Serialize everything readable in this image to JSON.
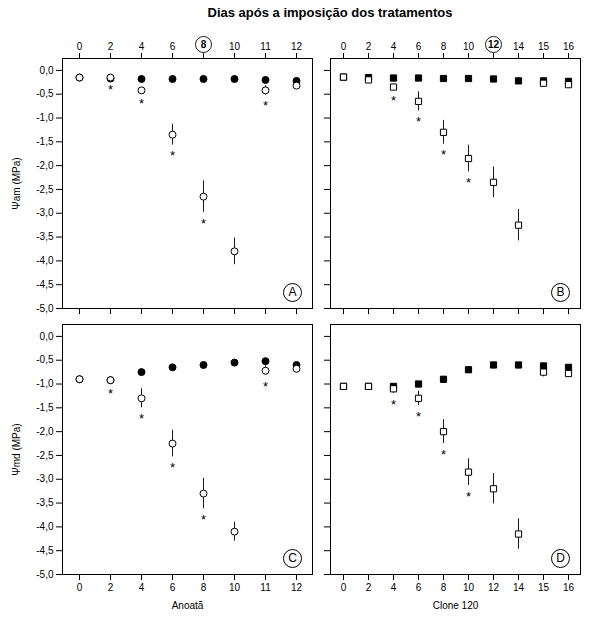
{
  "chart_data": [
    {
      "type": "scatter",
      "title": "Dias após a imposição dos tratamentos",
      "panel_label": "A",
      "ylabel": "Ψam (MPa)",
      "categories": [
        "0",
        "2",
        "4",
        "6",
        "8",
        "10",
        "11",
        "12"
      ],
      "circled_category": "8",
      "ylim": [
        -5.0,
        0.25
      ],
      "yticks": [
        {
          "value": 0.0,
          "label": "0,0"
        },
        {
          "value": -0.5,
          "label": "-0,5"
        },
        {
          "value": -1.0,
          "label": "-1,0"
        },
        {
          "value": -1.5,
          "label": "-1,5"
        },
        {
          "value": -2.0,
          "label": "-2,0"
        },
        {
          "value": -2.5,
          "label": "-2,5"
        },
        {
          "value": -3.0,
          "label": "-3,0"
        },
        {
          "value": -3.5,
          "label": "-3,5"
        },
        {
          "value": -4.0,
          "label": "-4,0"
        },
        {
          "value": -4.5,
          "label": "-4,5"
        },
        {
          "value": -5.0,
          "label": "-5,0"
        }
      ],
      "grid": false,
      "series": [
        {
          "color": "black",
          "marker": "circle",
          "values": [
            -0.15,
            -0.17,
            -0.18,
            -0.18,
            -0.18,
            -0.18,
            -0.2,
            -0.22
          ],
          "errors": [
            0.02,
            0.02,
            0.02,
            0.02,
            0.02,
            0.02,
            0.02,
            0.03
          ]
        },
        {
          "color": "black",
          "marker": "circle-open",
          "values": [
            -0.15,
            -0.15,
            -0.42,
            -1.35,
            -2.65,
            -3.8,
            -0.42,
            -0.32
          ],
          "errors": [
            0.02,
            0.02,
            0.06,
            0.22,
            0.33,
            0.28,
            0.1,
            0.05
          ],
          "annotations": [
            {
              "category": "2",
              "text": "*"
            },
            {
              "category": "4",
              "text": "*"
            },
            {
              "category": "6",
              "text": "*"
            },
            {
              "category": "8",
              "text": "*"
            },
            {
              "category": "11",
              "text": "*"
            }
          ]
        }
      ]
    },
    {
      "type": "scatter",
      "panel_label": "B",
      "categories": [
        "0",
        "2",
        "4",
        "6",
        "8",
        "10",
        "12",
        "14",
        "15",
        "16"
      ],
      "circled_category": "12",
      "ylim": [
        -5.0,
        0.25
      ],
      "yticks": [
        0.0,
        -0.5,
        -1.0,
        -1.5,
        -2.0,
        -2.5,
        -3.0,
        -3.5,
        -4.0,
        -4.5,
        -5.0
      ],
      "tick_labels": "x",
      "grid": false,
      "series": [
        {
          "color": "black",
          "marker": "square",
          "values": [
            -0.14,
            -0.15,
            -0.16,
            -0.16,
            -0.17,
            -0.17,
            -0.18,
            -0.22,
            -0.22,
            -0.23
          ],
          "errors": [
            0.02,
            0.02,
            0.02,
            0.02,
            0.02,
            0.02,
            0.02,
            0.03,
            0.03,
            0.02
          ]
        },
        {
          "color": "black",
          "marker": "square-open",
          "values": [
            -0.14,
            -0.2,
            -0.35,
            -0.65,
            -1.3,
            -1.85,
            -2.35,
            -3.25,
            -0.27,
            -0.3
          ],
          "errors": [
            0.02,
            0.04,
            0.06,
            0.2,
            0.25,
            0.28,
            0.32,
            0.33,
            0.05,
            0.05
          ],
          "annotations": [
            {
              "category": "4",
              "text": "*"
            },
            {
              "category": "6",
              "text": "*"
            },
            {
              "category": "8",
              "text": "*"
            },
            {
              "category": "10",
              "text": "*"
            }
          ]
        }
      ]
    },
    {
      "type": "scatter",
      "panel_label": "C",
      "ylabel": "Ψmd (MPa)",
      "xlabel": "Anoatã",
      "categories": [
        "0",
        "2",
        "4",
        "6",
        "8",
        "10",
        "11",
        "12"
      ],
      "ylim": [
        -5.0,
        0.25
      ],
      "yticks": [
        {
          "value": 0.0,
          "label": "0,0"
        },
        {
          "value": -0.5,
          "label": "-0,5"
        },
        {
          "value": -1.0,
          "label": "-1,0"
        },
        {
          "value": -1.5,
          "label": "-1,5"
        },
        {
          "value": -2.0,
          "label": "-2,0"
        },
        {
          "value": -2.5,
          "label": "-2,5"
        },
        {
          "value": -3.0,
          "label": "-3,0"
        },
        {
          "value": -3.5,
          "label": "-3,5"
        },
        {
          "value": -4.0,
          "label": "-4,0"
        },
        {
          "value": -4.5,
          "label": "-4,5"
        },
        {
          "value": -5.0,
          "label": "-5,0"
        }
      ],
      "grid": false,
      "series": [
        {
          "color": "black",
          "marker": "circle",
          "values": [
            -0.9,
            -0.92,
            -0.75,
            -0.65,
            -0.6,
            -0.55,
            -0.52,
            -0.6
          ],
          "errors": [
            0.05,
            0.05,
            0.06,
            0.05,
            0.05,
            0.05,
            0.05,
            0.05
          ]
        },
        {
          "color": "black",
          "marker": "circle-open",
          "values": [
            -0.9,
            -0.92,
            -1.3,
            -2.25,
            -3.3,
            -4.1,
            -0.72,
            -0.68
          ],
          "errors": [
            0.05,
            0.05,
            0.2,
            0.28,
            0.32,
            0.2,
            0.1,
            0.08
          ],
          "annotations": [
            {
              "category": "2",
              "text": "*"
            },
            {
              "category": "4",
              "text": "*"
            },
            {
              "category": "6",
              "text": "*"
            },
            {
              "category": "8",
              "text": "*"
            },
            {
              "category": "11",
              "text": "*"
            }
          ]
        }
      ]
    },
    {
      "type": "scatter",
      "panel_label": "D",
      "xlabel": "Clone 120",
      "categories": [
        "0",
        "2",
        "4",
        "6",
        "8",
        "10",
        "12",
        "14",
        "15",
        "16"
      ],
      "ylim": [
        -5.0,
        0.25
      ],
      "yticks": [
        0.0,
        -0.5,
        -1.0,
        -1.5,
        -2.0,
        -2.5,
        -3.0,
        -3.5,
        -4.0,
        -4.5,
        -5.0
      ],
      "tick_labels": "x",
      "grid": false,
      "series": [
        {
          "color": "black",
          "marker": "square",
          "values": [
            -1.05,
            -1.05,
            -1.05,
            -1.0,
            -0.9,
            -0.7,
            -0.6,
            -0.6,
            -0.62,
            -0.65
          ],
          "errors": [
            0.05,
            0.05,
            0.05,
            0.05,
            0.05,
            0.05,
            0.05,
            0.05,
            0.05,
            0.05
          ]
        },
        {
          "color": "black",
          "marker": "square-open",
          "values": [
            -1.05,
            -1.05,
            -1.1,
            -1.3,
            -2.0,
            -2.85,
            -3.2,
            -4.15,
            -0.75,
            -0.78
          ],
          "errors": [
            0.05,
            0.05,
            0.1,
            0.15,
            0.25,
            0.28,
            0.32,
            0.32,
            0.1,
            0.08
          ],
          "annotations": [
            {
              "category": "4",
              "text": "*"
            },
            {
              "category": "6",
              "text": "*"
            },
            {
              "category": "8",
              "text": "*"
            },
            {
              "category": "10",
              "text": "*"
            }
          ]
        }
      ]
    }
  ]
}
